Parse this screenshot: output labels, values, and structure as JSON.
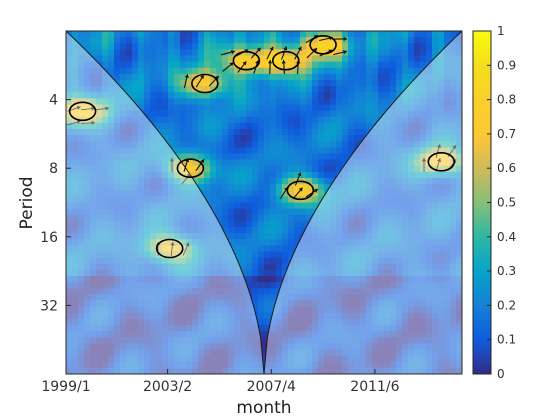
{
  "chart_data": {
    "type": "heatmap",
    "title": "",
    "xlabel": "month",
    "ylabel": "Period",
    "x_ticks": [
      {
        "label": "1999/1",
        "t": 0
      },
      {
        "label": "2003/2",
        "t": 49
      },
      {
        "label": "2007/4",
        "t": 99
      },
      {
        "label": "2011/6",
        "t": 149
      }
    ],
    "x_range": [
      0,
      191
    ],
    "y_scale": "log2",
    "y_ticks": [
      4,
      8,
      16,
      32
    ],
    "y_range": [
      2,
      64
    ],
    "colorbar": {
      "ticks": [
        "0",
        "0.1",
        "0.2",
        "0.3",
        "0.4",
        "0.5",
        "0.6",
        "0.7",
        "0.8",
        "0.9",
        "1"
      ],
      "range": [
        0,
        1
      ],
      "colormap": "parula"
    },
    "features": {
      "cone_of_influence": true,
      "significance_contours": true,
      "phase_arrows": true
    },
    "significant_regions": [
      {
        "t": 8,
        "period": 4.5
      },
      {
        "t": 67,
        "period": 3.4
      },
      {
        "t": 87,
        "period": 2.7
      },
      {
        "t": 106,
        "period": 2.7
      },
      {
        "t": 124,
        "period": 2.3
      },
      {
        "t": 60,
        "period": 8
      },
      {
        "t": 113,
        "period": 10
      },
      {
        "t": 50,
        "period": 18
      },
      {
        "t": 181,
        "period": 7.5
      }
    ]
  }
}
